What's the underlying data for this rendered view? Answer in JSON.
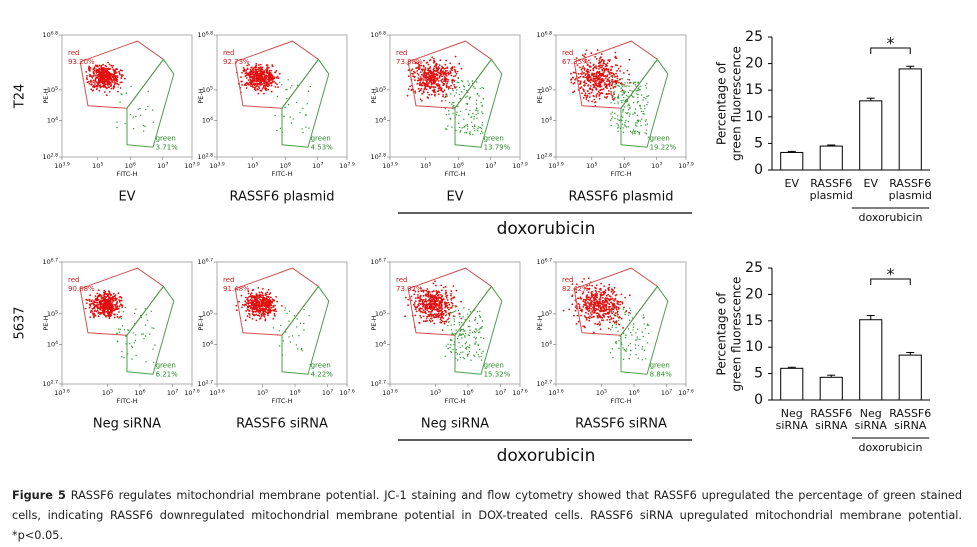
{
  "flow_cytometry": {
    "x_axis_label": "FITC-H",
    "y_axis_label": "PE-H",
    "gate_labels": {
      "red": "red",
      "green": "green"
    },
    "rows": [
      {
        "label": "T24",
        "group_label": "doxorubicin",
        "xticks": [
          {
            "base": "10",
            "exp": "3.9"
          },
          {
            "base": "10",
            "exp": "5"
          },
          {
            "base": "10",
            "exp": "6"
          },
          {
            "base": "10",
            "exp": "7"
          },
          {
            "base": "10",
            "exp": "7.9"
          }
        ],
        "yticks": [
          {
            "base": "10",
            "exp": "2.8"
          },
          {
            "base": "10",
            "exp": "4"
          },
          {
            "base": "10",
            "exp": "5"
          },
          {
            "base": "10",
            "exp": "6.8"
          }
        ],
        "panels": [
          {
            "condition": "EV",
            "red_pct": "93.20%",
            "green_pct": "3.71%"
          },
          {
            "condition": "RASSF6 plasmid",
            "red_pct": "92.73%",
            "green_pct": "4.53%"
          },
          {
            "condition": "EV",
            "red_pct": "73.88%",
            "green_pct": "13.79%"
          },
          {
            "condition": "RASSF6 plasmid",
            "red_pct": "67.35%",
            "green_pct": "19.22%"
          }
        ]
      },
      {
        "label": "5637",
        "group_label": "doxorubicin",
        "xticks": [
          {
            "base": "10",
            "exp": "3.6"
          },
          {
            "base": "10",
            "exp": "5"
          },
          {
            "base": "10",
            "exp": "6"
          },
          {
            "base": "10",
            "exp": "7"
          },
          {
            "base": "10",
            "exp": "7.6"
          }
        ],
        "yticks": [
          {
            "base": "10",
            "exp": "2.7"
          },
          {
            "base": "10",
            "exp": "4"
          },
          {
            "base": "10",
            "exp": "5"
          },
          {
            "base": "10",
            "exp": "6.7"
          }
        ],
        "panels": [
          {
            "condition": "Neg siRNA",
            "red_pct": "90.68%",
            "green_pct": "6.21%"
          },
          {
            "condition": "RASSF6 siRNA",
            "red_pct": "91.48%",
            "green_pct": "4.22%"
          },
          {
            "condition": "Neg siRNA",
            "red_pct": "73.92%",
            "green_pct": "15.32%"
          },
          {
            "condition": "RASSF6 siRNA",
            "red_pct": "82.42%",
            "green_pct": "8.84%"
          }
        ]
      }
    ]
  },
  "chart_data": [
    {
      "type": "bar",
      "ylabel": "Percentage of green fluorescence",
      "categories": [
        "EV",
        "RASSF6 plasmid",
        "EV",
        "RASSF6 plasmid"
      ],
      "values": [
        3.3,
        4.5,
        13,
        19
      ],
      "errors": [
        0.2,
        0.2,
        0.5,
        0.5
      ],
      "color": "#ffffff",
      "ylim": [
        0,
        25
      ],
      "yticks": [
        0,
        5,
        10,
        15,
        20,
        25
      ],
      "group_label": "doxorubicin",
      "significance": "*"
    },
    {
      "type": "bar",
      "ylabel": "Percentage of green fluorescence",
      "categories": [
        "Neg siRNA",
        "RASSF6 siRNA",
        "Neg siRNA",
        "RASSF6 siRNA"
      ],
      "values": [
        6,
        4.3,
        15.2,
        8.5
      ],
      "errors": [
        0.2,
        0.4,
        0.8,
        0.5
      ],
      "color": "#ffffff",
      "ylim": [
        0,
        25
      ],
      "yticks": [
        0,
        5,
        10,
        15,
        20,
        25
      ],
      "group_label": "doxorubicin",
      "significance": "*"
    }
  ],
  "caption": {
    "label": "Figure 5",
    "text": "RASSF6 regulates mitochondrial membrane potential. JC-1 staining and flow cytometry showed that RASSF6 upregulated the percentage of green stained cells, indicating RASSF6 downregulated mitochondrial membrane potential in DOX-treated cells. RASSF6 siRNA upregulated mitochondrial membrane potential. *p<0.05."
  }
}
